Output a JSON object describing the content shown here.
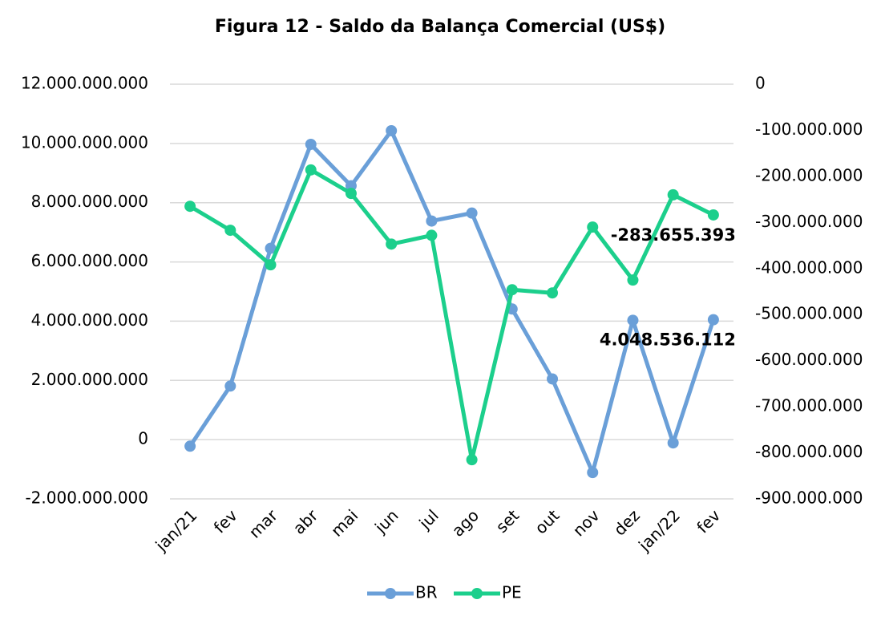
{
  "chart_data": {
    "type": "line",
    "title": "Figura 12 - Saldo da Balança Comercial (US$)",
    "categories": [
      "jan/21",
      "fev",
      "mar",
      "abr",
      "mai",
      "jun",
      "jul",
      "ago",
      "set",
      "out",
      "nov",
      "dez",
      "jan/22",
      "fev"
    ],
    "series": [
      {
        "name": "BR",
        "color": "#6a9fd8",
        "axis": "y",
        "values": [
          -220000000,
          1810000000,
          6460000000,
          9970000000,
          8570000000,
          10430000000,
          7380000000,
          7650000000,
          4410000000,
          2050000000,
          -1110000000,
          4030000000,
          -110000000,
          4048536112
        ],
        "value_labels": [
          null,
          null,
          null,
          null,
          null,
          null,
          null,
          null,
          null,
          null,
          null,
          null,
          null,
          "4.048.536.112"
        ]
      },
      {
        "name": "PE",
        "color": "#1ccf8c",
        "axis": "y2",
        "values": [
          -265000000,
          -317000000,
          -392000000,
          -186000000,
          -237000000,
          -347000000,
          -328000000,
          -815000000,
          -446000000,
          -453000000,
          -310000000,
          -425000000,
          -240000000,
          -283655393
        ],
        "value_labels": [
          null,
          null,
          null,
          null,
          null,
          null,
          null,
          null,
          null,
          null,
          null,
          null,
          null,
          "-283.655.393"
        ]
      }
    ],
    "ylim": [
      -2000000000,
      12000000000
    ],
    "yticks": [
      {
        "value": -2000000000,
        "label": "-2.000.000.000"
      },
      {
        "value": 0,
        "label": "0"
      },
      {
        "value": 2000000000,
        "label": "2.000.000.000"
      },
      {
        "value": 4000000000,
        "label": "4.000.000.000"
      },
      {
        "value": 6000000000,
        "label": "6.000.000.000"
      },
      {
        "value": 8000000000,
        "label": "8.000.000.000"
      },
      {
        "value": 10000000000,
        "label": "10.000.000.000"
      },
      {
        "value": 12000000000,
        "label": "12.000.000.000"
      }
    ],
    "y2lim": [
      -900000000,
      0
    ],
    "y2ticks": [
      {
        "value": -900000000,
        "label": "-900.000.000"
      },
      {
        "value": -800000000,
        "label": "-800.000.000"
      },
      {
        "value": -700000000,
        "label": "-700.000.000"
      },
      {
        "value": -600000000,
        "label": "-600.000.000"
      },
      {
        "value": -500000000,
        "label": "-500.000.000"
      },
      {
        "value": -400000000,
        "label": "-400.000.000"
      },
      {
        "value": -300000000,
        "label": "-300.000.000"
      },
      {
        "value": -200000000,
        "label": "-200.000.000"
      },
      {
        "value": -100000000,
        "label": "-100.000.000"
      },
      {
        "value": 0,
        "label": "0"
      }
    ],
    "grid": true,
    "legend": "bottom"
  }
}
